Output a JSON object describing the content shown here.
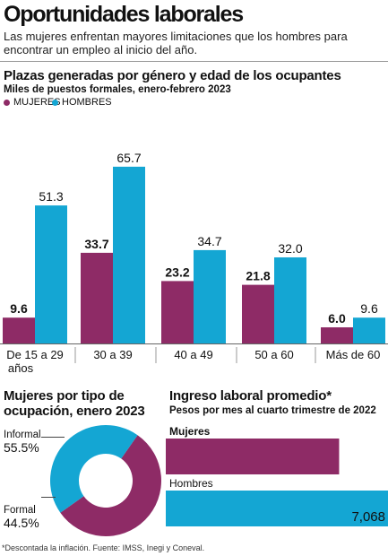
{
  "header": {
    "title": "Oportunidades laborales",
    "subtitle": "Las mujeres enfrentan mayores limitaciones que los hombres para encontrar un empleo al inicio del año."
  },
  "colors": {
    "mujeres": "#8e2b66",
    "hombres": "#14a6d3"
  },
  "footnote": "*Descontada la inflación. Fuente: IMSS, Inegi y Coneval.",
  "chart_data": [
    {
      "type": "bar",
      "title": "Plazas generadas por género y edad de los ocupantes",
      "subtitle": "Miles de puestos formales, enero-febrero 2023",
      "legend_position": "top-left",
      "categories": [
        "De 15 a 29 años",
        "30 a 39",
        "40 a 49",
        "50 a 60",
        "Más de 60"
      ],
      "series": [
        {
          "name": "MUJERES",
          "values": [
            9.6,
            33.7,
            23.2,
            21.8,
            6.0
          ],
          "labels": [
            "9.6",
            "33.7",
            "23.2",
            "21.8",
            "6.0"
          ]
        },
        {
          "name": "HOMBRES",
          "values": [
            51.3,
            65.7,
            34.7,
            32.0,
            9.6
          ],
          "labels": [
            "51.3",
            "65.7",
            "34.7",
            "32.0",
            "9.6"
          ]
        }
      ]
    },
    {
      "type": "pie",
      "title": "Mujeres por tipo de ocupación, enero 2023",
      "slices": [
        {
          "label": "Informal",
          "value": 55.5,
          "value_label": "55.5%"
        },
        {
          "label": "Formal",
          "value": 44.5,
          "value_label": "44.5%"
        }
      ]
    },
    {
      "type": "bar",
      "orientation": "horizontal",
      "title": "Ingreso laboral promedio*",
      "subtitle": "Pesos por mes al cuarto trimestre de 2022",
      "categories": [
        "Mujeres",
        "Hombres"
      ],
      "values": [
        null,
        7068
      ],
      "value_labels": [
        "",
        "7,068"
      ],
      "relative_length": [
        0.78,
        1.0
      ]
    }
  ]
}
